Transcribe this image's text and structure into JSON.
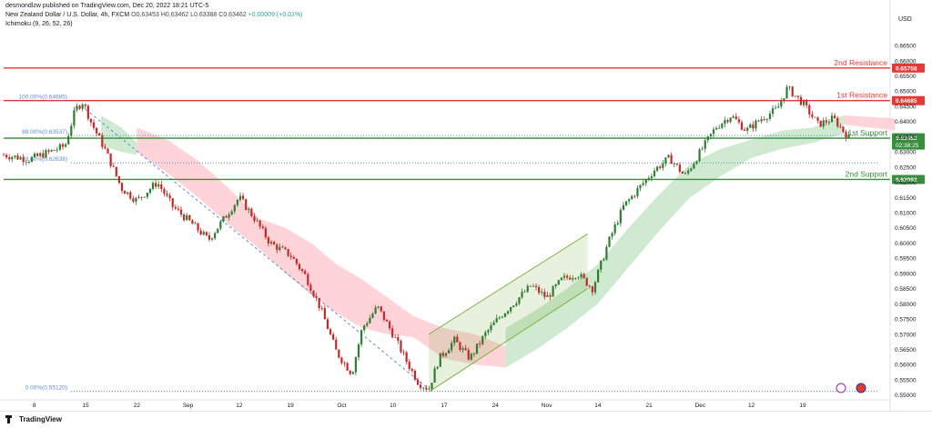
{
  "header": {
    "publisher": "desmondlzw published on TradingView.com, Dec 20, 2022 18:21 UTC-5",
    "symbol": "New Zealand Dollar / U.S. Dollar, 4h, FXCM",
    "ohlc": "O0.63453 H0.63462 L0.63388 C0.63462",
    "change": "+0.00009 (+0.01%)",
    "indicator": "Ichimoku (9, 26, 52, 26)"
  },
  "currency_label": "USD",
  "footer": {
    "brand": "TradingView"
  },
  "colors": {
    "resistance": "#e53935",
    "support": "#388e3c",
    "fib": "#5b8ad8",
    "channel": "#7cb342",
    "bull": "#26a69a",
    "bear": "#ef5350",
    "candle": "#2e7d32",
    "candle_down": "#c62828",
    "cloud_bull": "#c8e6c9",
    "cloud_bear": "#ffcdd2"
  },
  "chart_data": {
    "type": "candlestick",
    "title": "",
    "y_axis": {
      "unit": "USD",
      "range": [
        0.549,
        0.668
      ],
      "ticks": [
        0.55,
        0.555,
        0.56,
        0.565,
        0.57,
        0.575,
        0.58,
        0.585,
        0.59,
        0.595,
        0.6,
        0.605,
        0.61,
        0.615,
        0.62,
        0.625,
        0.63,
        0.635,
        0.64,
        0.645,
        0.65,
        0.655,
        0.66,
        0.665
      ],
      "tick_labels": [
        "0.55000",
        "0.55500",
        "0.56000",
        "0.56500",
        "0.57000",
        "0.57500",
        "0.58000",
        "0.58500",
        "0.59000",
        "0.59500",
        "0.60000",
        "0.60500",
        "0.61000",
        "0.61500",
        "0.62000",
        "0.62500",
        "0.63000",
        "0.63500",
        "0.64000",
        "0.64500",
        "0.65000",
        "0.65500",
        "0.66000",
        "0.66500"
      ]
    },
    "x_axis": {
      "labels": [
        "8",
        "15",
        "22",
        "Sep",
        "12",
        "19",
        "Oct",
        "10",
        "17",
        "24",
        "Nov",
        "14",
        "21",
        "Dec",
        "12",
        "19"
      ],
      "label_pos": [
        0.6,
        1.6,
        2.6,
        3.6,
        4.6,
        5.6,
        6.6,
        7.6,
        8.6,
        9.6,
        10.6,
        11.6,
        12.6,
        13.6,
        14.6,
        15.6
      ]
    },
    "price_path": [
      [
        0.0,
        0.629
      ],
      [
        0.5,
        0.6275
      ],
      [
        0.9,
        0.63
      ],
      [
        1.2,
        0.632
      ],
      [
        1.4,
        0.644
      ],
      [
        1.55,
        0.6465
      ],
      [
        1.7,
        0.64
      ],
      [
        2.0,
        0.63
      ],
      [
        2.3,
        0.618
      ],
      [
        2.6,
        0.614
      ],
      [
        3.0,
        0.62
      ],
      [
        3.3,
        0.612
      ],
      [
        3.7,
        0.606
      ],
      [
        4.0,
        0.601
      ],
      [
        4.3,
        0.608
      ],
      [
        4.6,
        0.615
      ],
      [
        4.9,
        0.608
      ],
      [
        5.2,
        0.6
      ],
      [
        5.6,
        0.596
      ],
      [
        5.9,
        0.589
      ],
      [
        6.2,
        0.578
      ],
      [
        6.5,
        0.564
      ],
      [
        6.8,
        0.557
      ],
      [
        7.0,
        0.572
      ],
      [
        7.3,
        0.579
      ],
      [
        7.6,
        0.57
      ],
      [
        7.9,
        0.56
      ],
      [
        8.1,
        0.554
      ],
      [
        8.3,
        0.552
      ],
      [
        8.5,
        0.562
      ],
      [
        8.8,
        0.568
      ],
      [
        9.1,
        0.562
      ],
      [
        9.4,
        0.57
      ],
      [
        9.7,
        0.576
      ],
      [
        10.0,
        0.581
      ],
      [
        10.3,
        0.586
      ],
      [
        10.6,
        0.582
      ],
      [
        10.9,
        0.588
      ],
      [
        11.2,
        0.59
      ],
      [
        11.5,
        0.585
      ],
      [
        11.8,
        0.6
      ],
      [
        12.1,
        0.612
      ],
      [
        12.4,
        0.618
      ],
      [
        12.7,
        0.624
      ],
      [
        13.0,
        0.628
      ],
      [
        13.3,
        0.622
      ],
      [
        13.6,
        0.63
      ],
      [
        13.9,
        0.638
      ],
      [
        14.2,
        0.642
      ],
      [
        14.5,
        0.637
      ],
      [
        14.8,
        0.641
      ],
      [
        15.1,
        0.644
      ],
      [
        15.3,
        0.651
      ],
      [
        15.6,
        0.646
      ],
      [
        15.9,
        0.639
      ],
      [
        16.2,
        0.641
      ],
      [
        16.5,
        0.6346
      ]
    ],
    "levels": [
      {
        "name": "2nd Resistance",
        "value": 0.65758,
        "label": "0.65758",
        "role": "resistance"
      },
      {
        "name": "1st Resistance",
        "value": 0.64685,
        "label": "0.64685",
        "role": "resistance"
      },
      {
        "name": "1st Support",
        "value": 0.63448,
        "label": "0.63448",
        "role": "support"
      },
      {
        "name": "2nd Support",
        "value": 0.62092,
        "label": "0.62092",
        "role": "support"
      }
    ],
    "current_price": {
      "value": 0.63462,
      "label": "0.63462",
      "countdown": "02:38:25"
    },
    "fibonacci": [
      {
        "label": "100.00%(0.64685)",
        "value": 0.64685
      },
      {
        "label": "88.00%(0.63537)",
        "value": 0.63537
      },
      {
        "label": "78.60%(0.62638)",
        "value": 0.62638
      },
      {
        "label": "0.00%(0.55120)",
        "value": 0.5512
      }
    ],
    "trendline": [
      [
        1.6,
        0.644
      ],
      [
        8.3,
        0.552
      ]
    ],
    "channel": {
      "lower": [
        [
          8.3,
          0.551
        ],
        [
          11.4,
          0.585
        ]
      ],
      "upper": [
        [
          8.3,
          0.57
        ],
        [
          11.4,
          0.603
        ]
      ]
    },
    "cloud_segments": [
      {
        "trend": "bull",
        "top": [
          [
            1.9,
            0.642
          ],
          [
            2.3,
            0.638
          ],
          [
            2.6,
            0.633
          ]
        ],
        "bottom": [
          [
            1.9,
            0.632
          ],
          [
            2.3,
            0.63
          ],
          [
            2.6,
            0.629
          ]
        ]
      },
      {
        "trend": "bear",
        "top": [
          [
            2.6,
            0.638
          ],
          [
            3.2,
            0.634
          ],
          [
            3.8,
            0.627
          ],
          [
            4.4,
            0.618
          ],
          [
            5.0,
            0.608
          ],
          [
            5.5,
            0.605
          ],
          [
            6.0,
            0.6
          ],
          [
            6.5,
            0.593
          ],
          [
            7.0,
            0.588
          ],
          [
            7.5,
            0.582
          ],
          [
            8.0,
            0.576
          ],
          [
            8.6,
            0.572
          ],
          [
            9.2,
            0.57
          ],
          [
            9.8,
            0.566
          ]
        ],
        "bottom": [
          [
            2.6,
            0.63
          ],
          [
            3.2,
            0.623
          ],
          [
            3.8,
            0.615
          ],
          [
            4.4,
            0.606
          ],
          [
            5.0,
            0.598
          ],
          [
            5.5,
            0.59
          ],
          [
            6.0,
            0.583
          ],
          [
            6.5,
            0.577
          ],
          [
            7.0,
            0.572
          ],
          [
            7.5,
            0.57
          ],
          [
            8.0,
            0.569
          ],
          [
            8.6,
            0.562
          ],
          [
            9.2,
            0.56
          ],
          [
            9.8,
            0.559
          ]
        ]
      },
      {
        "trend": "bull",
        "top": [
          [
            9.8,
            0.572
          ],
          [
            10.4,
            0.578
          ],
          [
            11.0,
            0.585
          ],
          [
            11.6,
            0.593
          ],
          [
            12.2,
            0.605
          ],
          [
            12.8,
            0.616
          ],
          [
            13.4,
            0.626
          ],
          [
            14.0,
            0.631
          ],
          [
            14.6,
            0.634
          ],
          [
            15.2,
            0.637
          ],
          [
            15.8,
            0.638
          ],
          [
            16.4,
            0.642
          ]
        ],
        "bottom": [
          [
            9.8,
            0.559
          ],
          [
            10.4,
            0.565
          ],
          [
            11.0,
            0.572
          ],
          [
            11.6,
            0.58
          ],
          [
            12.2,
            0.592
          ],
          [
            12.8,
            0.604
          ],
          [
            13.4,
            0.615
          ],
          [
            14.0,
            0.622
          ],
          [
            14.6,
            0.628
          ],
          [
            15.2,
            0.631
          ],
          [
            15.8,
            0.633
          ],
          [
            16.4,
            0.636
          ]
        ]
      },
      {
        "trend": "bear",
        "top": [
          [
            16.4,
            0.642
          ],
          [
            17.4,
            0.641
          ]
        ],
        "bottom": [
          [
            16.4,
            0.639
          ],
          [
            17.4,
            0.637
          ]
        ]
      }
    ]
  }
}
